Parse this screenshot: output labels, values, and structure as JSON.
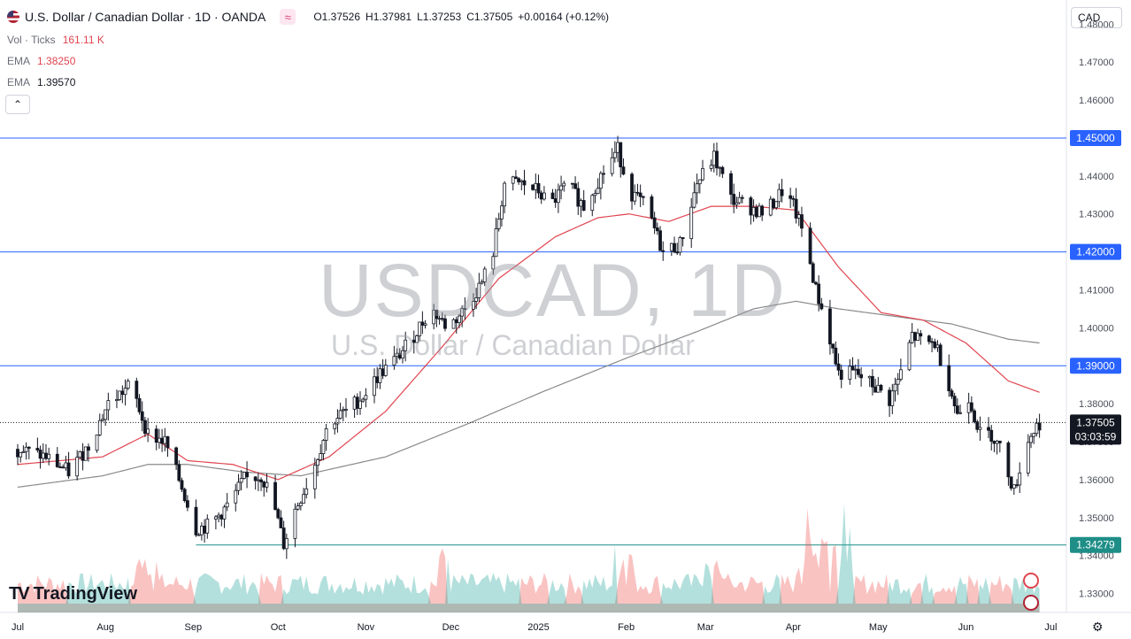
{
  "header": {
    "symbol_title": "U.S. Dollar / Canadian Dollar · 1D · OANDA",
    "ohlc": [
      {
        "key": "O",
        "value": "1.37526"
      },
      {
        "key": "H",
        "value": "1.37981"
      },
      {
        "key": "L",
        "value": "1.37253"
      },
      {
        "key": "C",
        "value": "1.37505"
      }
    ],
    "change": "+0.00164 (+0.12%)"
  },
  "indicators": {
    "vol_label": "Vol · Ticks",
    "vol_value": "161.11 K",
    "ema1_label": "EMA",
    "ema1_value": "1.38250",
    "ema2_label": "EMA",
    "ema2_value": "1.39570"
  },
  "currency_selector": "CAD",
  "watermark": {
    "symbol": "USDCAD, 1D",
    "name": "U.S. Dollar / Canadian Dollar"
  },
  "branding": {
    "name": "TradingView",
    "mark": "TV"
  },
  "colors": {
    "up": "#26a69a",
    "down": "#ef5350",
    "ema_fast": "#e0454f",
    "ema_slow": "#8a8a8a",
    "hline": "#2962ff",
    "tag_blue": "#2962ff",
    "tag_teal": "#1e8e87",
    "current": "#131722"
  },
  "price_tags": {
    "current_price": "1.37505",
    "countdown": "03:03:59"
  },
  "chart_data": {
    "type": "candlestick",
    "y_axis": {
      "ticks": [
        "1.48000",
        "1.47000",
        "1.46000",
        "1.45000",
        "1.44000",
        "1.43000",
        "1.42000",
        "1.41000",
        "1.40000",
        "1.39000",
        "1.38000",
        "1.37000",
        "1.36000",
        "1.35000",
        "1.34000",
        "1.33000"
      ],
      "tick_values": [
        1.48,
        1.47,
        1.46,
        1.45,
        1.44,
        1.43,
        1.42,
        1.41,
        1.4,
        1.39,
        1.38,
        1.37,
        1.36,
        1.35,
        1.34,
        1.33
      ],
      "ylim": [
        1.325,
        1.4845
      ]
    },
    "x_axis": {
      "ticks": [
        "Jul",
        "Aug",
        "Sep",
        "Oct",
        "Nov",
        "Dec",
        "2025",
        "Feb",
        "Mar",
        "Apr",
        "May",
        "Jun",
        "Jul"
      ],
      "tick_positions_day": [
        0,
        31,
        62,
        92,
        123,
        153,
        184,
        215,
        243,
        274,
        304,
        335,
        365
      ]
    },
    "horizontal_levels": [
      {
        "value": 1.45,
        "label": "1.45000",
        "color": "blue"
      },
      {
        "value": 1.42,
        "label": "1.42000",
        "color": "blue"
      },
      {
        "value": 1.39,
        "label": "1.39000",
        "color": "blue"
      },
      {
        "value": 1.34279,
        "label": "1.34279",
        "color": "teal"
      }
    ],
    "current_price": 1.37505,
    "price_path": [
      [
        0,
        1.368
      ],
      [
        10,
        1.366
      ],
      [
        18,
        1.362
      ],
      [
        25,
        1.369
      ],
      [
        32,
        1.38
      ],
      [
        40,
        1.385
      ],
      [
        46,
        1.372
      ],
      [
        52,
        1.37
      ],
      [
        58,
        1.358
      ],
      [
        63,
        1.347
      ],
      [
        68,
        1.348
      ],
      [
        74,
        1.353
      ],
      [
        80,
        1.36
      ],
      [
        86,
        1.361
      ],
      [
        90,
        1.355
      ],
      [
        94,
        1.343
      ],
      [
        98,
        1.352
      ],
      [
        104,
        1.362
      ],
      [
        110,
        1.375
      ],
      [
        116,
        1.378
      ],
      [
        122,
        1.382
      ],
      [
        128,
        1.388
      ],
      [
        134,
        1.392
      ],
      [
        140,
        1.398
      ],
      [
        146,
        1.405
      ],
      [
        152,
        1.4
      ],
      [
        158,
        1.405
      ],
      [
        164,
        1.412
      ],
      [
        168,
        1.42
      ],
      [
        172,
        1.438
      ],
      [
        178,
        1.438
      ],
      [
        184,
        1.436
      ],
      [
        188,
        1.432
      ],
      [
        194,
        1.438
      ],
      [
        200,
        1.432
      ],
      [
        206,
        1.44
      ],
      [
        212,
        1.447
      ],
      [
        216,
        1.436
      ],
      [
        222,
        1.432
      ],
      [
        228,
        1.42
      ],
      [
        234,
        1.422
      ],
      [
        240,
        1.438
      ],
      [
        246,
        1.445
      ],
      [
        252,
        1.434
      ],
      [
        258,
        1.432
      ],
      [
        264,
        1.43
      ],
      [
        270,
        1.436
      ],
      [
        274,
        1.432
      ],
      [
        278,
        1.424
      ],
      [
        282,
        1.41
      ],
      [
        286,
        1.4
      ],
      [
        290,
        1.388
      ],
      [
        296,
        1.388
      ],
      [
        302,
        1.385
      ],
      [
        308,
        1.381
      ],
      [
        312,
        1.388
      ],
      [
        316,
        1.398
      ],
      [
        320,
        1.396
      ],
      [
        324,
        1.396
      ],
      [
        328,
        1.388
      ],
      [
        332,
        1.377
      ],
      [
        336,
        1.382
      ],
      [
        340,
        1.372
      ],
      [
        344,
        1.372
      ],
      [
        348,
        1.367
      ],
      [
        352,
        1.357
      ],
      [
        355,
        1.366
      ],
      [
        358,
        1.372
      ],
      [
        361,
        1.375
      ]
    ],
    "ema_fast_path": [
      [
        0,
        1.364
      ],
      [
        30,
        1.366
      ],
      [
        46,
        1.372
      ],
      [
        60,
        1.365
      ],
      [
        76,
        1.364
      ],
      [
        92,
        1.36
      ],
      [
        110,
        1.366
      ],
      [
        130,
        1.378
      ],
      [
        150,
        1.395
      ],
      [
        170,
        1.413
      ],
      [
        190,
        1.424
      ],
      [
        205,
        1.429
      ],
      [
        216,
        1.43
      ],
      [
        230,
        1.428
      ],
      [
        245,
        1.432
      ],
      [
        260,
        1.432
      ],
      [
        275,
        1.431
      ],
      [
        290,
        1.416
      ],
      [
        305,
        1.404
      ],
      [
        320,
        1.402
      ],
      [
        335,
        1.396
      ],
      [
        350,
        1.386
      ],
      [
        361,
        1.383
      ]
    ],
    "ema_slow_path": [
      [
        0,
        1.358
      ],
      [
        30,
        1.361
      ],
      [
        46,
        1.364
      ],
      [
        60,
        1.364
      ],
      [
        80,
        1.362
      ],
      [
        100,
        1.361
      ],
      [
        130,
        1.366
      ],
      [
        160,
        1.375
      ],
      [
        185,
        1.383
      ],
      [
        215,
        1.392
      ],
      [
        240,
        1.399
      ],
      [
        260,
        1.405
      ],
      [
        275,
        1.407
      ],
      [
        290,
        1.405
      ],
      [
        310,
        1.403
      ],
      [
        330,
        1.401
      ],
      [
        350,
        1.397
      ],
      [
        361,
        1.396
      ]
    ]
  }
}
